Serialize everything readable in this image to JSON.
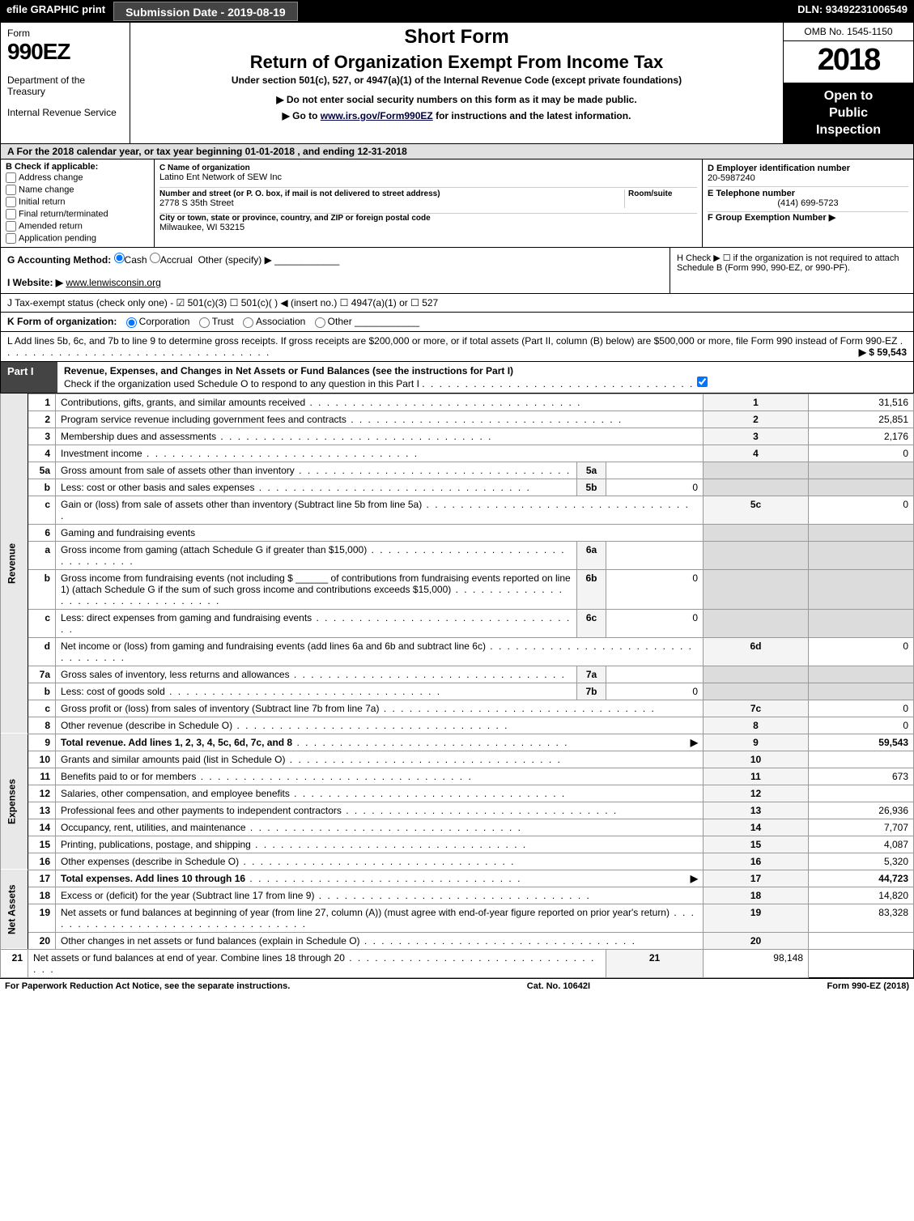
{
  "topbar": {
    "efile": "efile GRAPHIC print",
    "submission_label": "Submission Date - 2019-08-19",
    "dln": "DLN: 93492231006549"
  },
  "header": {
    "form_word": "Form",
    "form_num": "990EZ",
    "dept": "Department of the Treasury",
    "irs": "Internal Revenue Service",
    "title1": "Short Form",
    "title2": "Return of Organization Exempt From Income Tax",
    "subtitle": "Under section 501(c), 527, or 4947(a)(1) of the Internal Revenue Code (except private foundations)",
    "note1": "▶ Do not enter social security numbers on this form as it may be made public.",
    "note2_pre": "▶ Go to ",
    "note2_link": "www.irs.gov/Form990EZ",
    "note2_post": " for instructions and the latest information.",
    "omb": "OMB No. 1545-1150",
    "year": "2018",
    "open1": "Open to",
    "open2": "Public",
    "open3": "Inspection"
  },
  "line_a": "A  For the 2018 calendar year, or tax year beginning 01-01-2018          , and ending 12-31-2018",
  "box_b": {
    "title": "B  Check if applicable:",
    "opts": [
      "Address change",
      "Name change",
      "Initial return",
      "Final return/terminated",
      "Amended return",
      "Application pending"
    ]
  },
  "box_c": {
    "c_lbl": "C Name of organization",
    "c_name": "Latino Ent Network of SEW Inc",
    "addr_lbl": "Number and street (or P. O. box, if mail is not delivered to street address)",
    "addr": "2778 S 35th Street",
    "room_lbl": "Room/suite",
    "city_lbl": "City or town, state or province, country, and ZIP or foreign postal code",
    "city": "Milwaukee, WI  53215"
  },
  "box_d": {
    "d_lbl": "D Employer identification number",
    "ein": "20-5987240",
    "e_lbl": "E Telephone number",
    "phone": "(414) 699-5723",
    "f_lbl": "F Group Exemption Number   ▶"
  },
  "line_g": {
    "lbl": "G Accounting Method:",
    "cash": "Cash",
    "accrual": "Accrual",
    "other": "Other (specify) ▶"
  },
  "line_h": "H  Check ▶ ☐ if the organization is not required to attach Schedule B (Form 990, 990-EZ, or 990-PF).",
  "line_i": {
    "lbl": "I Website: ▶",
    "val": "www.lenwisconsin.org"
  },
  "line_j": "J Tax-exempt status (check only one) - ☑ 501(c)(3)  ☐ 501(c)(  ) ◀ (insert no.)  ☐ 4947(a)(1) or  ☐ 527",
  "line_k": {
    "lbl": "K Form of organization:",
    "opts": [
      "Corporation",
      "Trust",
      "Association",
      "Other"
    ]
  },
  "line_l": {
    "text": "L Add lines 5b, 6c, and 7b to line 9 to determine gross receipts. If gross receipts are $200,000 or more, or if total assets (Part II, column (B) below) are $500,000 or more, file Form 990 instead of Form 990-EZ",
    "arrow": "▶ $ 59,543"
  },
  "part1": {
    "tag": "Part I",
    "title": "Revenue, Expenses, and Changes in Net Assets or Fund Balances (see the instructions for Part I)",
    "check": "Check if the organization used Schedule O to respond to any question in this Part I"
  },
  "sections": {
    "revenue": "Revenue",
    "expenses": "Expenses",
    "netassets": "Net Assets"
  },
  "rows": [
    {
      "n": "1",
      "d": "Contributions, gifts, grants, and similar amounts received",
      "rn": "1",
      "rv": "31,516"
    },
    {
      "n": "2",
      "d": "Program service revenue including government fees and contracts",
      "rn": "2",
      "rv": "25,851"
    },
    {
      "n": "3",
      "d": "Membership dues and assessments",
      "rn": "3",
      "rv": "2,176"
    },
    {
      "n": "4",
      "d": "Investment income",
      "rn": "4",
      "rv": "0"
    },
    {
      "n": "5a",
      "d": "Gross amount from sale of assets other than inventory",
      "mn": "5a",
      "mv": ""
    },
    {
      "n": "b",
      "d": "Less: cost or other basis and sales expenses",
      "mn": "5b",
      "mv": "0"
    },
    {
      "n": "c",
      "d": "Gain or (loss) from sale of assets other than inventory (Subtract line 5b from line 5a)",
      "rn": "5c",
      "rv": "0"
    },
    {
      "n": "6",
      "d": "Gaming and fundraising events"
    },
    {
      "n": "a",
      "d": "Gross income from gaming (attach Schedule G if greater than $15,000)",
      "mn": "6a",
      "mv": ""
    },
    {
      "n": "b",
      "d": "Gross income from fundraising events (not including $ ______ of contributions from fundraising events reported on line 1) (attach Schedule G if the sum of such gross income and contributions exceeds $15,000)",
      "mn": "6b",
      "mv": "0"
    },
    {
      "n": "c",
      "d": "Less: direct expenses from gaming and fundraising events",
      "mn": "6c",
      "mv": "0"
    },
    {
      "n": "d",
      "d": "Net income or (loss) from gaming and fundraising events (add lines 6a and 6b and subtract line 6c)",
      "rn": "6d",
      "rv": "0"
    },
    {
      "n": "7a",
      "d": "Gross sales of inventory, less returns and allowances",
      "mn": "7a",
      "mv": ""
    },
    {
      "n": "b",
      "d": "Less: cost of goods sold",
      "mn": "7b",
      "mv": "0"
    },
    {
      "n": "c",
      "d": "Gross profit or (loss) from sales of inventory (Subtract line 7b from line 7a)",
      "rn": "7c",
      "rv": "0"
    },
    {
      "n": "8",
      "d": "Other revenue (describe in Schedule O)",
      "rn": "8",
      "rv": "0"
    },
    {
      "n": "9",
      "d": "Total revenue. Add lines 1, 2, 3, 4, 5c, 6d, 7c, and 8",
      "rn": "9",
      "rv": "59,543",
      "total": true,
      "arrow": true
    },
    {
      "n": "10",
      "d": "Grants and similar amounts paid (list in Schedule O)",
      "rn": "10",
      "rv": ""
    },
    {
      "n": "11",
      "d": "Benefits paid to or for members",
      "rn": "11",
      "rv": "673"
    },
    {
      "n": "12",
      "d": "Salaries, other compensation, and employee benefits",
      "rn": "12",
      "rv": ""
    },
    {
      "n": "13",
      "d": "Professional fees and other payments to independent contractors",
      "rn": "13",
      "rv": "26,936"
    },
    {
      "n": "14",
      "d": "Occupancy, rent, utilities, and maintenance",
      "rn": "14",
      "rv": "7,707"
    },
    {
      "n": "15",
      "d": "Printing, publications, postage, and shipping",
      "rn": "15",
      "rv": "4,087"
    },
    {
      "n": "16",
      "d": "Other expenses (describe in Schedule O)",
      "rn": "16",
      "rv": "5,320"
    },
    {
      "n": "17",
      "d": "Total expenses. Add lines 10 through 16",
      "rn": "17",
      "rv": "44,723",
      "total": true,
      "arrow": true
    },
    {
      "n": "18",
      "d": "Excess or (deficit) for the year (Subtract line 17 from line 9)",
      "rn": "18",
      "rv": "14,820"
    },
    {
      "n": "19",
      "d": "Net assets or fund balances at beginning of year (from line 27, column (A)) (must agree with end-of-year figure reported on prior year's return)",
      "rn": "19",
      "rv": "83,328"
    },
    {
      "n": "20",
      "d": "Other changes in net assets or fund balances (explain in Schedule O)",
      "rn": "20",
      "rv": ""
    },
    {
      "n": "21",
      "d": "Net assets or fund balances at end of year. Combine lines 18 through 20",
      "rn": "21",
      "rv": "98,148"
    }
  ],
  "footer": {
    "left": "For Paperwork Reduction Act Notice, see the separate instructions.",
    "mid": "Cat. No. 10642I",
    "right": "Form 990-EZ (2018)"
  }
}
